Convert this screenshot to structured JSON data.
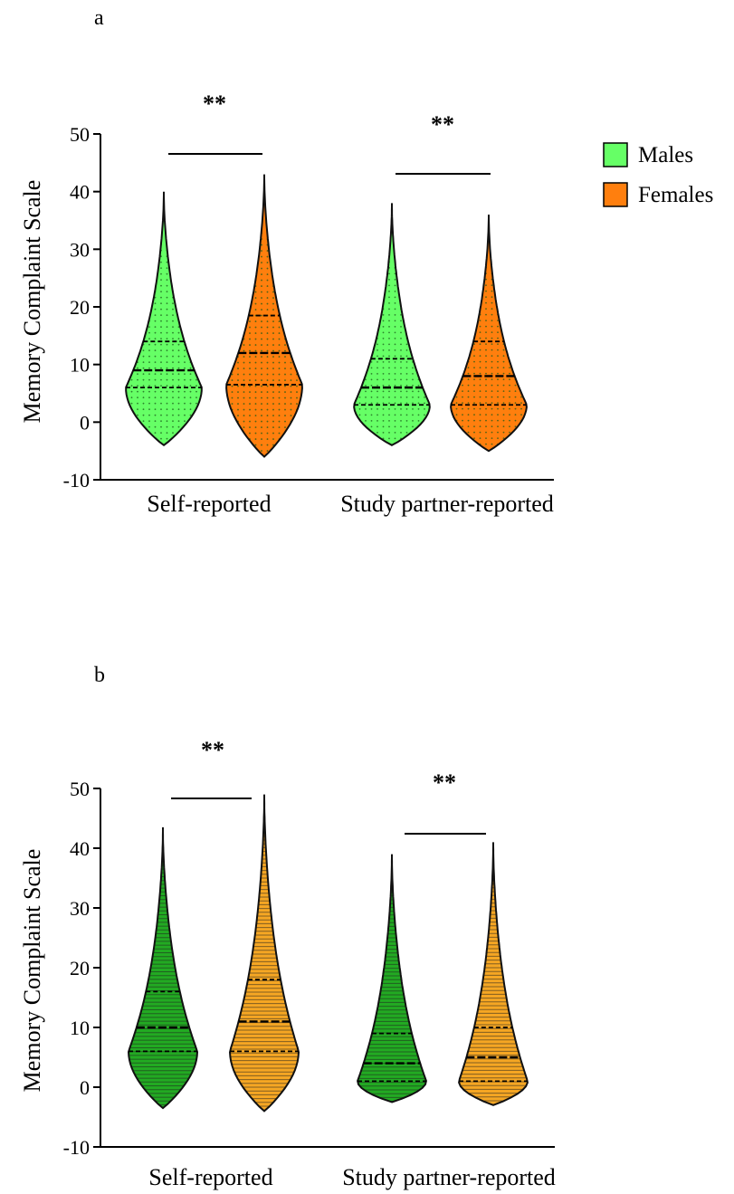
{
  "panels": [
    {
      "label": "a",
      "ylabel": "Memory Complaint Scale",
      "significance": [
        "**",
        "**"
      ]
    },
    {
      "label": "b",
      "ylabel": "Memory Complaint Scale",
      "significance": [
        "**",
        "**"
      ]
    }
  ],
  "legend": [
    {
      "name": "Males",
      "color": "#66ff66"
    },
    {
      "name": "Females",
      "color": "#ff7f0e"
    }
  ],
  "chart_data": [
    {
      "type": "violin",
      "panel": "a",
      "title": "",
      "xlabel": "",
      "ylabel": "Memory Complaint Scale",
      "ylim": [
        -10,
        50
      ],
      "yticks": [
        -10,
        0,
        10,
        20,
        30,
        40,
        50
      ],
      "ytick_labels": [
        "-10",
        "0",
        "10",
        "20",
        "30",
        "40",
        "50"
      ],
      "categories": [
        "Self-reported",
        "Study partner-reported"
      ],
      "series": [
        {
          "name": "Males",
          "color": "#66ff66",
          "groups": [
            {
              "category": "Self-reported",
              "min": -4,
              "max": 40,
              "q1": 6,
              "median": 9,
              "q3": 14
            },
            {
              "category": "Study partner-reported",
              "min": -4,
              "max": 38,
              "q1": 3,
              "median": 6,
              "q3": 11
            }
          ]
        },
        {
          "name": "Females",
          "color": "#ff7f0e",
          "groups": [
            {
              "category": "Self-reported",
              "min": -6,
              "max": 43,
              "q1": 6.5,
              "median": 12,
              "q3": 18.5
            },
            {
              "category": "Study partner-reported",
              "min": -5,
              "max": 36,
              "q1": 3,
              "median": 8,
              "q3": 14
            }
          ]
        }
      ],
      "comparisons": [
        {
          "category": "Self-reported",
          "label": "**"
        },
        {
          "category": "Study partner-reported",
          "label": "**"
        }
      ]
    },
    {
      "type": "violin",
      "panel": "b",
      "title": "",
      "xlabel": "",
      "ylabel": "Memory Complaint Scale",
      "ylim": [
        -10,
        50
      ],
      "yticks": [
        -10,
        0,
        10,
        20,
        30,
        40,
        50
      ],
      "ytick_labels": [
        "-10",
        "0",
        "10",
        "20",
        "30",
        "40",
        "50"
      ],
      "categories": [
        "Self-reported",
        "Study partner-reported"
      ],
      "series": [
        {
          "name": "Males",
          "color": "#22aa22",
          "groups": [
            {
              "category": "Self-reported",
              "min": -3.5,
              "max": 43.5,
              "q1": 6,
              "median": 10,
              "q3": 16
            },
            {
              "category": "Study partner-reported",
              "min": -2.5,
              "max": 39,
              "q1": 1,
              "median": 4,
              "q3": 9
            }
          ]
        },
        {
          "name": "Females",
          "color": "#f5a623",
          "groups": [
            {
              "category": "Self-reported",
              "min": -4,
              "max": 49,
              "q1": 6,
              "median": 11,
              "q3": 18
            },
            {
              "category": "Study partner-reported",
              "min": -3,
              "max": 41,
              "q1": 1,
              "median": 5,
              "q3": 10
            }
          ]
        }
      ],
      "comparisons": [
        {
          "category": "Self-reported",
          "label": "**"
        },
        {
          "category": "Study partner-reported",
          "label": "**"
        }
      ]
    }
  ]
}
